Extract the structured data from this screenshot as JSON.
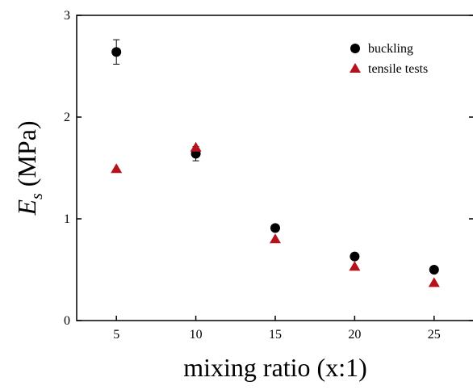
{
  "chart_data": {
    "type": "scatter",
    "x_label": "mixing ratio (x:1)",
    "y_label": {
      "symbol": "E",
      "subscript": "s",
      "unit": "(MPa)"
    },
    "xlim": [
      2.5,
      27.5
    ],
    "xticks": [
      5,
      10,
      15,
      20,
      25
    ],
    "ylim": [
      0,
      3
    ],
    "yticks": [
      0,
      1,
      2,
      3
    ],
    "legend_position": "upper right",
    "series": [
      {
        "name": "buckling",
        "color": "#000000",
        "marker": "circle",
        "x": [
          5,
          10,
          15,
          20,
          25
        ],
        "values": [
          2.64,
          1.64,
          0.91,
          0.63,
          0.5
        ],
        "errors": [
          0.12,
          0.07,
          0.03,
          0.02,
          0.02
        ]
      },
      {
        "name": "tensile tests",
        "color": "#b5121b",
        "marker": "triangle",
        "x": [
          5,
          10,
          15,
          20,
          25
        ],
        "values": [
          1.49,
          1.7,
          0.8,
          0.53,
          0.37
        ]
      }
    ]
  }
}
